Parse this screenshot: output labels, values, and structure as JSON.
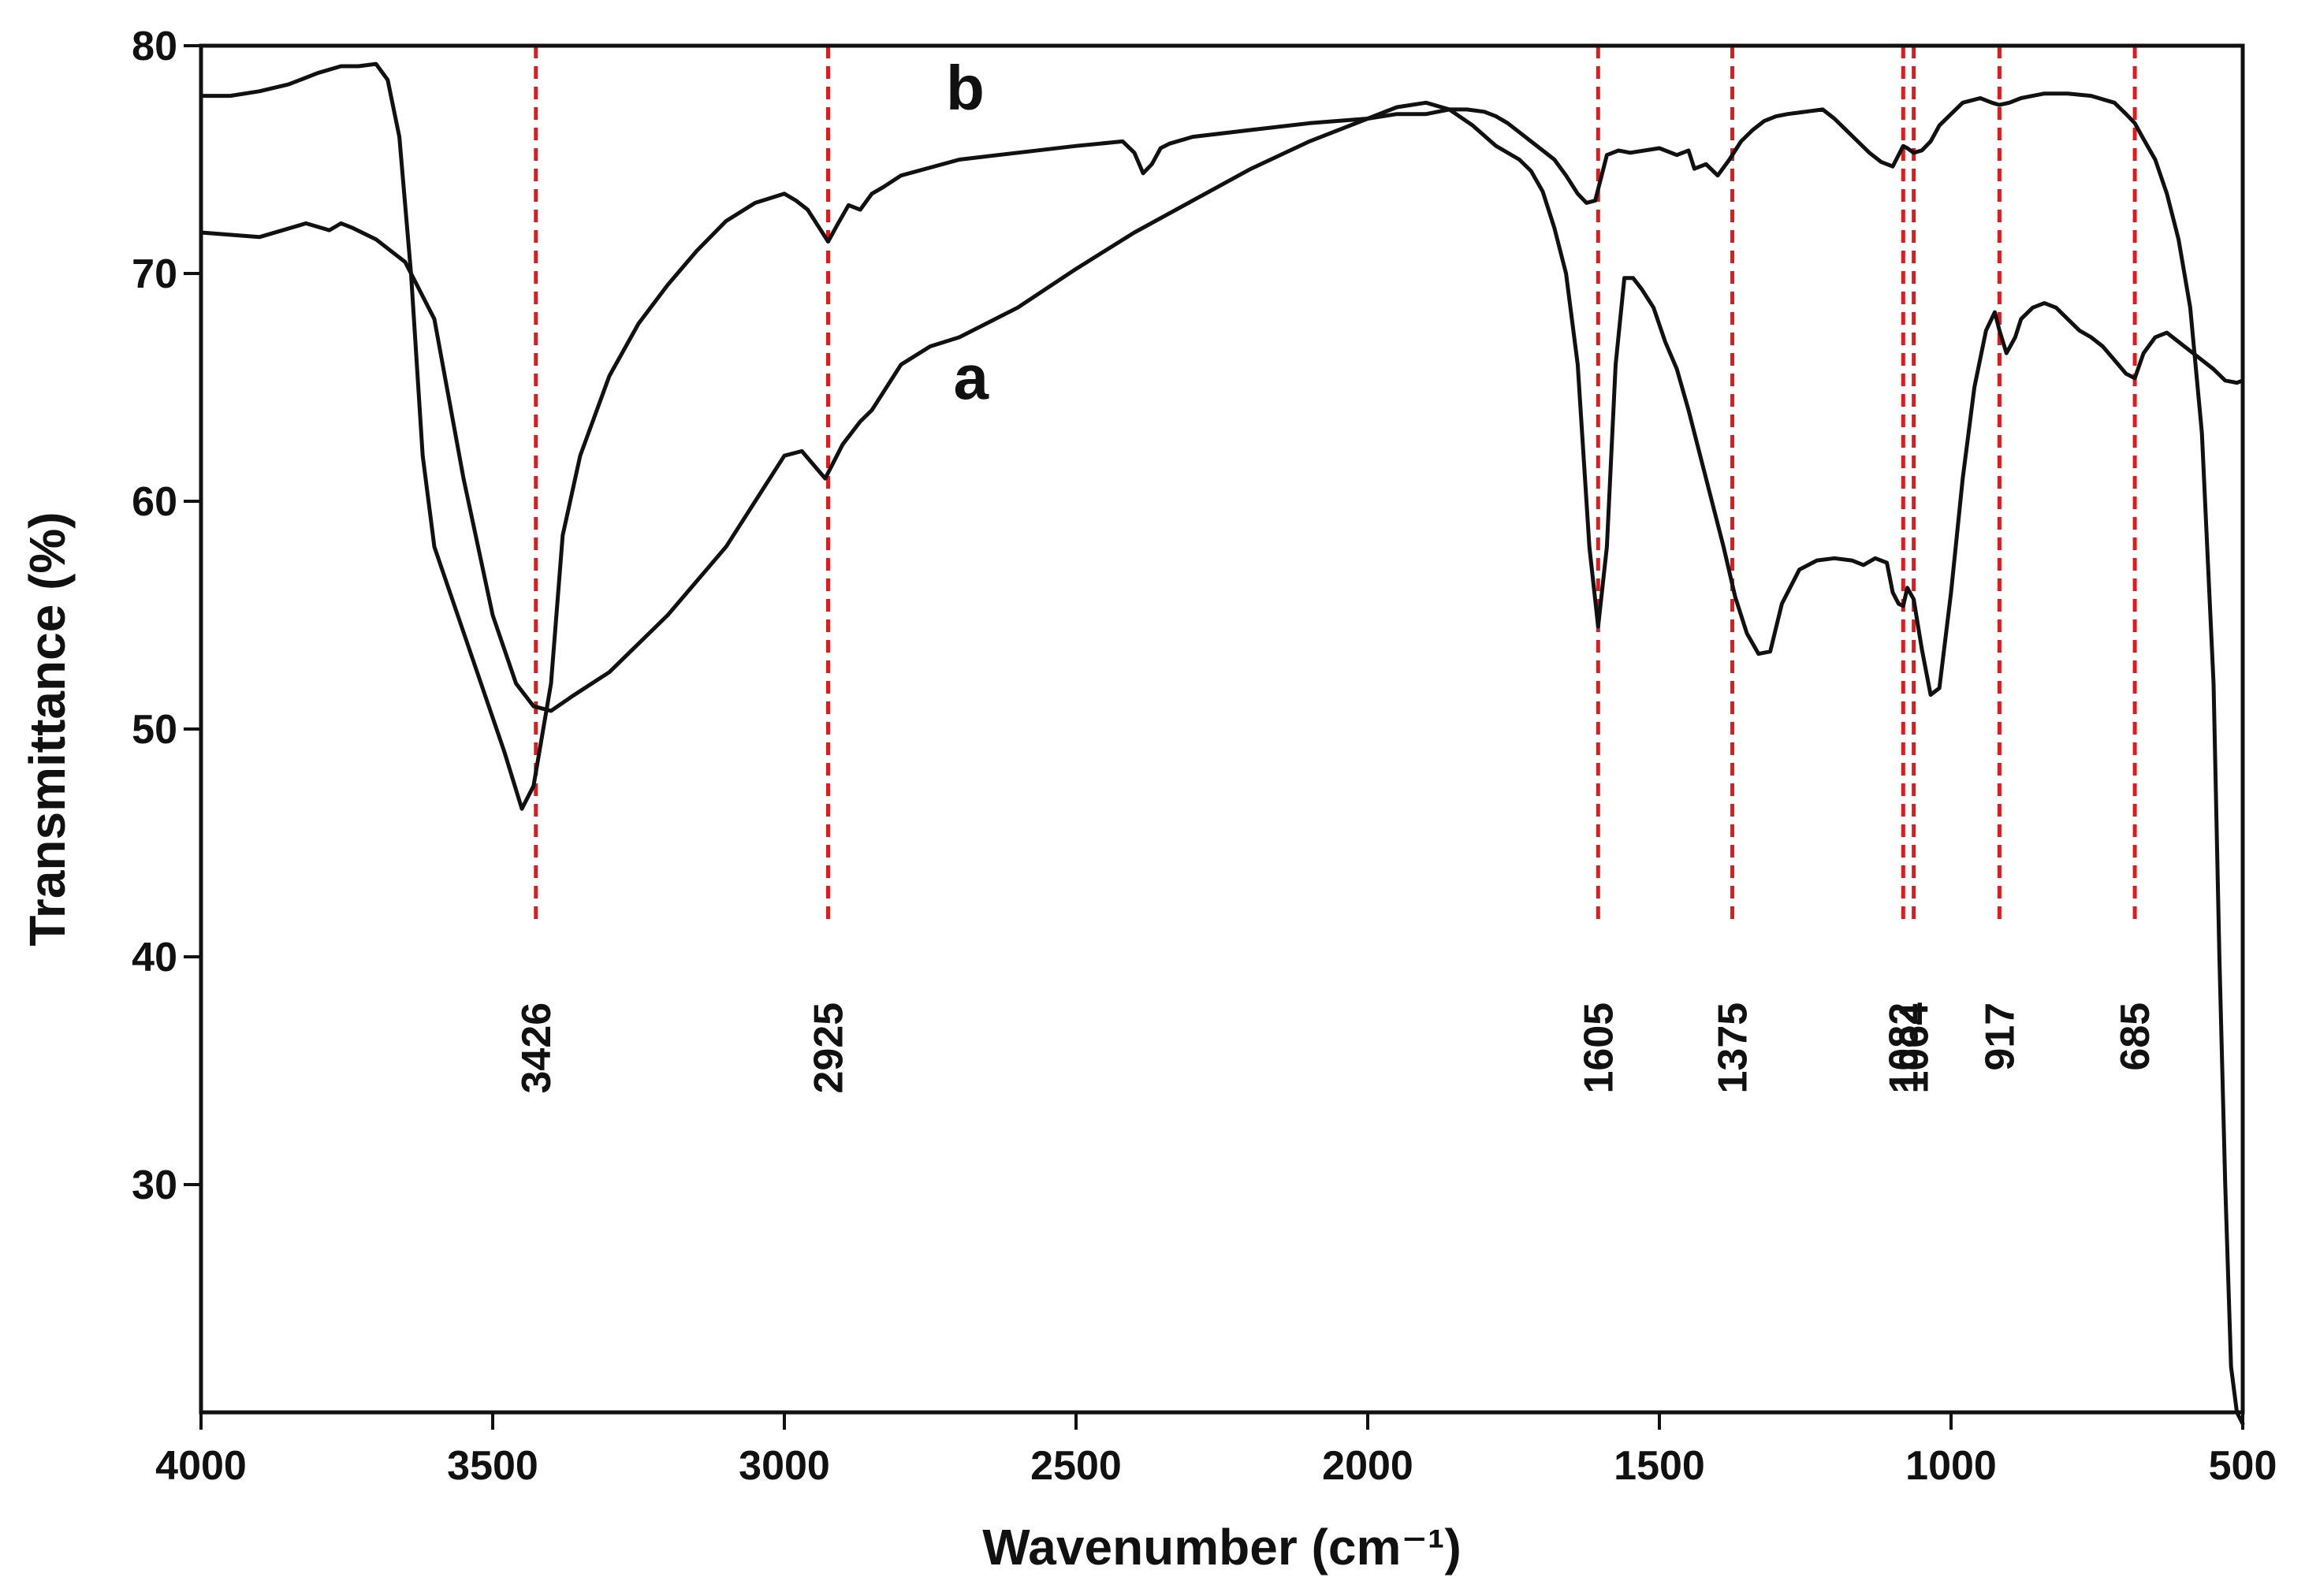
{
  "chart_data": {
    "type": "line",
    "title": "",
    "xlabel": "Wavenumber (cm⁻¹)",
    "ylabel": "Transmittance (%)",
    "xlim": [
      4000,
      500
    ],
    "ylim": [
      20,
      80
    ],
    "xticks": [
      4000,
      3500,
      3000,
      2500,
      2000,
      1500,
      1000,
      500
    ],
    "yticks": [
      30,
      40,
      50,
      60,
      70,
      80
    ],
    "grid": false,
    "marker_color": "#e31a1c",
    "line_color": "#111111",
    "peak_markers": [
      3426,
      2925,
      1605,
      1375,
      1082,
      1064,
      917,
      685
    ],
    "series": [
      {
        "name": "a",
        "label_at": [
          2680,
          64.5
        ],
        "x": [
          4000,
          3900,
          3820,
          3780,
          3760,
          3740,
          3700,
          3650,
          3600,
          3550,
          3500,
          3460,
          3430,
          3400,
          3360,
          3300,
          3200,
          3100,
          3000,
          2970,
          2930,
          2900,
          2870,
          2850,
          2800,
          2750,
          2700,
          2600,
          2500,
          2400,
          2300,
          2200,
          2100,
          2000,
          1950,
          1900,
          1860,
          1820,
          1780,
          1740,
          1720,
          1700,
          1680,
          1660,
          1640,
          1620,
          1605,
          1590,
          1575,
          1560,
          1545,
          1530,
          1510,
          1490,
          1470,
          1450,
          1430,
          1410,
          1390,
          1370,
          1350,
          1330,
          1310,
          1290,
          1260,
          1230,
          1200,
          1170,
          1150,
          1130,
          1110,
          1100,
          1090,
          1082,
          1075,
          1064,
          1050,
          1035,
          1020,
          1000,
          980,
          960,
          940,
          925,
          917,
          905,
          890,
          880,
          860,
          840,
          820,
          800,
          780,
          760,
          740,
          720,
          700,
          685,
          670,
          650,
          630,
          600,
          570,
          550,
          530,
          510,
          500
        ],
        "y": [
          71.8,
          71.6,
          72.2,
          71.9,
          72.2,
          72.0,
          71.5,
          70.5,
          68,
          61,
          55,
          52,
          51,
          50.8,
          51.5,
          52.5,
          55,
          58,
          62,
          62.2,
          61,
          62.5,
          63.5,
          64,
          66,
          66.8,
          67.2,
          68.5,
          70.2,
          71.8,
          73.2,
          74.6,
          75.8,
          76.8,
          77.3,
          77.5,
          77.2,
          76.5,
          75.6,
          75,
          74.5,
          73.6,
          72,
          70,
          66,
          58,
          54.5,
          58,
          66,
          69.8,
          69.8,
          69.3,
          68.5,
          67,
          65.8,
          64,
          62,
          60,
          58,
          55.8,
          54.2,
          53.3,
          53.4,
          55.5,
          57,
          57.4,
          57.5,
          57.4,
          57.2,
          57.5,
          57.3,
          56,
          55.5,
          55.4,
          56.2,
          55.7,
          53.5,
          51.5,
          51.8,
          56,
          61,
          65,
          67.5,
          68.3,
          67.5,
          66.5,
          67.2,
          68,
          68.5,
          68.7,
          68.5,
          68,
          67.5,
          67.2,
          66.8,
          66.2,
          65.6,
          65.4,
          66.5,
          67.2,
          67.4,
          66.8,
          66.2,
          65.8,
          65.3,
          65.2,
          65.3
        ]
      },
      {
        "name": "b",
        "label_at": [
          2690,
          77.2
        ],
        "x": [
          4000,
          3950,
          3900,
          3850,
          3800,
          3760,
          3730,
          3700,
          3680,
          3660,
          3640,
          3620,
          3600,
          3560,
          3520,
          3480,
          3450,
          3430,
          3400,
          3380,
          3350,
          3300,
          3250,
          3200,
          3150,
          3100,
          3050,
          3000,
          2980,
          2960,
          2940,
          2925,
          2910,
          2890,
          2870,
          2850,
          2830,
          2800,
          2700,
          2600,
          2500,
          2420,
          2400,
          2385,
          2370,
          2355,
          2340,
          2300,
          2200,
          2100,
          2000,
          1950,
          1900,
          1860,
          1830,
          1800,
          1780,
          1760,
          1740,
          1720,
          1700,
          1680,
          1660,
          1640,
          1625,
          1610,
          1600,
          1590,
          1570,
          1550,
          1500,
          1470,
          1450,
          1440,
          1420,
          1400,
          1380,
          1360,
          1340,
          1320,
          1300,
          1280,
          1250,
          1220,
          1200,
          1180,
          1160,
          1140,
          1120,
          1100,
          1090,
          1082,
          1075,
          1064,
          1050,
          1035,
          1020,
          1000,
          980,
          950,
          930,
          917,
          900,
          880,
          860,
          840,
          800,
          760,
          720,
          700,
          685,
          670,
          650,
          630,
          610,
          590,
          570,
          550,
          540,
          530,
          520,
          510,
          500
        ],
        "y": [
          77.8,
          77.8,
          78,
          78.3,
          78.8,
          79.1,
          79.1,
          79.2,
          78.5,
          76,
          70,
          62,
          58,
          55,
          52,
          49,
          46.5,
          47.5,
          52,
          58.5,
          62,
          65.5,
          67.8,
          69.5,
          71,
          72.3,
          73.1,
          73.5,
          73.2,
          72.8,
          72,
          71.4,
          72.1,
          73.0,
          72.8,
          73.5,
          73.8,
          74.3,
          75,
          75.3,
          75.6,
          75.8,
          75.3,
          74.4,
          74.8,
          75.5,
          75.7,
          76,
          76.3,
          76.6,
          76.8,
          77.0,
          77.0,
          77.2,
          77.2,
          77.1,
          76.9,
          76.6,
          76.2,
          75.8,
          75.4,
          75,
          74.3,
          73.5,
          73.1,
          73.2,
          74.2,
          75.2,
          75.4,
          75.3,
          75.5,
          75.2,
          75.4,
          74.6,
          74.8,
          74.3,
          75.0,
          75.8,
          76.3,
          76.7,
          76.9,
          77.0,
          77.1,
          77.2,
          76.8,
          76.3,
          75.8,
          75.3,
          74.9,
          74.7,
          75.2,
          75.6,
          75.5,
          75.3,
          75.4,
          75.8,
          76.5,
          77.0,
          77.5,
          77.7,
          77.5,
          77.4,
          77.5,
          77.7,
          77.8,
          77.9,
          77.9,
          77.8,
          77.5,
          77.0,
          76.6,
          75.9,
          75.0,
          73.5,
          71.5,
          68.5,
          63,
          52,
          40,
          30,
          22,
          20,
          19.5
        ]
      }
    ]
  }
}
